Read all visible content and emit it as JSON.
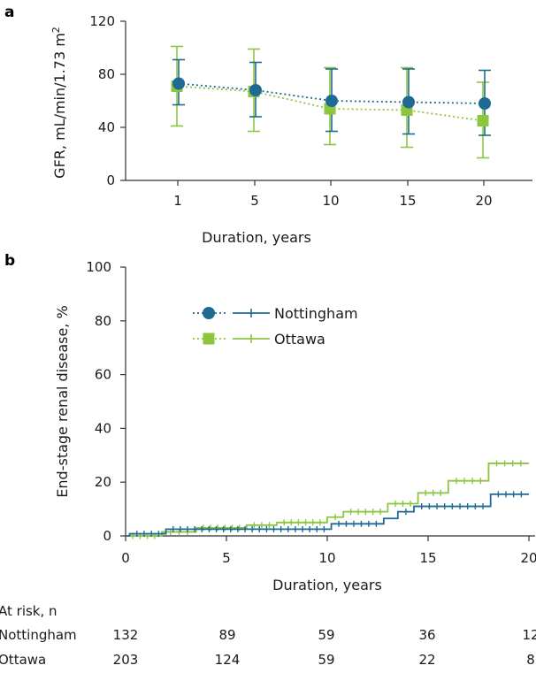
{
  "chart_data": [
    {
      "panel": "a",
      "type": "line",
      "ylabel": "GFR, mL/min/1.73 m",
      "ylabel_sup": "2",
      "xlabel": "Duration, years",
      "categories": [
        "1",
        "5",
        "10",
        "15",
        "20"
      ],
      "ylim": [
        0,
        120
      ],
      "yticks": [
        "0",
        "40",
        "80",
        "120"
      ],
      "series": [
        {
          "name": "Nottingham",
          "color": "#1f6a95",
          "values": [
            73,
            68,
            60,
            59,
            58
          ],
          "err_low": [
            57,
            48,
            37,
            35,
            34
          ],
          "err_high": [
            91,
            89,
            84,
            84,
            83
          ]
        },
        {
          "name": "Ottawa",
          "color": "#8cc63f",
          "values": [
            71,
            67,
            54,
            53,
            45
          ],
          "err_low": [
            41,
            37,
            27,
            25,
            17
          ],
          "err_high": [
            101,
            99,
            85,
            85,
            74
          ]
        }
      ]
    },
    {
      "panel": "b",
      "type": "line",
      "ylabel": "End-stage renal disease, %",
      "xlabel": "Duration, years",
      "xlim": [
        0,
        20
      ],
      "ylim": [
        0,
        100
      ],
      "xticks": [
        "0",
        "5",
        "10",
        "15",
        "20"
      ],
      "yticks": [
        "0",
        "20",
        "40",
        "60",
        "80",
        "100"
      ],
      "legend": [
        "Nottingham",
        "Ottawa"
      ],
      "series": [
        {
          "name": "Nottingham",
          "color": "#1f6a95",
          "x": [
            0,
            0.2,
            0.2,
            2.0,
            2.0,
            10.2,
            10.2,
            12.8,
            12.8,
            13.5,
            13.5,
            14.3,
            14.3,
            18.1,
            18.1,
            20
          ],
          "y": [
            0,
            0,
            0.8,
            0.8,
            2.5,
            2.5,
            4.5,
            4.5,
            6.5,
            6.5,
            9,
            9,
            11,
            11,
            15.5,
            15.5
          ]
        },
        {
          "name": "Ottawa",
          "color": "#8cc63f",
          "x": [
            0,
            1.8,
            1.8,
            3.5,
            3.5,
            6.0,
            6.0,
            7.5,
            7.5,
            10.0,
            10.0,
            10.8,
            10.8,
            13.0,
            13.0,
            14.5,
            14.5,
            16.0,
            16.0,
            18.0,
            18.0,
            20
          ],
          "y": [
            0,
            0,
            1.5,
            1.5,
            3,
            3,
            4,
            4,
            5,
            5,
            7,
            7,
            9,
            9,
            12,
            12,
            16,
            16,
            20.5,
            20.5,
            27,
            27
          ]
        }
      ]
    }
  ],
  "at_risk": {
    "title": "At risk, n",
    "rows": [
      {
        "label": "Nottingham",
        "values": [
          "132",
          "89",
          "59",
          "36",
          "12"
        ]
      },
      {
        "label": "Ottawa",
        "values": [
          "203",
          "124",
          "59",
          "22",
          "8"
        ]
      }
    ]
  }
}
